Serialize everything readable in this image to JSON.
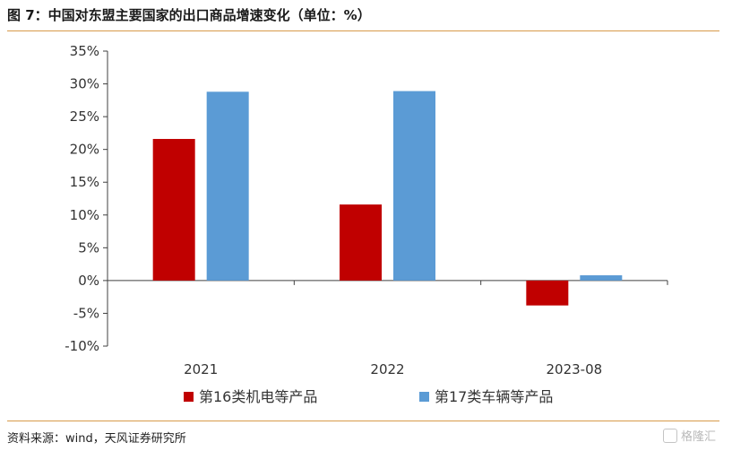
{
  "header": {
    "title": "图 7：中国对东盟主要国家的出口商品增速变化（单位：%）"
  },
  "footer": {
    "source": "资料来源：wind，天风证券研究所",
    "watermark": "格隆汇"
  },
  "colors": {
    "series1": "#c00000",
    "series2": "#5b9bd5",
    "rule": "#d79a4a"
  },
  "chart_data": {
    "type": "bar",
    "title": "",
    "xlabel": "",
    "ylabel": "",
    "categories": [
      "2021",
      "2022",
      "2023-08"
    ],
    "series": [
      {
        "name": "第16类机电等产品",
        "values": [
          21.6,
          11.6,
          -3.8
        ]
      },
      {
        "name": "第17类车辆等产品",
        "values": [
          28.8,
          28.9,
          0.8
        ]
      }
    ],
    "ylim": [
      -10,
      35
    ],
    "yticks": [
      35,
      30,
      25,
      20,
      15,
      10,
      5,
      0,
      -5,
      -10
    ],
    "ytick_labels": [
      "35%",
      "30%",
      "25%",
      "20%",
      "15%",
      "10%",
      "5%",
      "0%",
      "-5%",
      "-10%"
    ],
    "grid": false,
    "legend_position": "bottom"
  }
}
